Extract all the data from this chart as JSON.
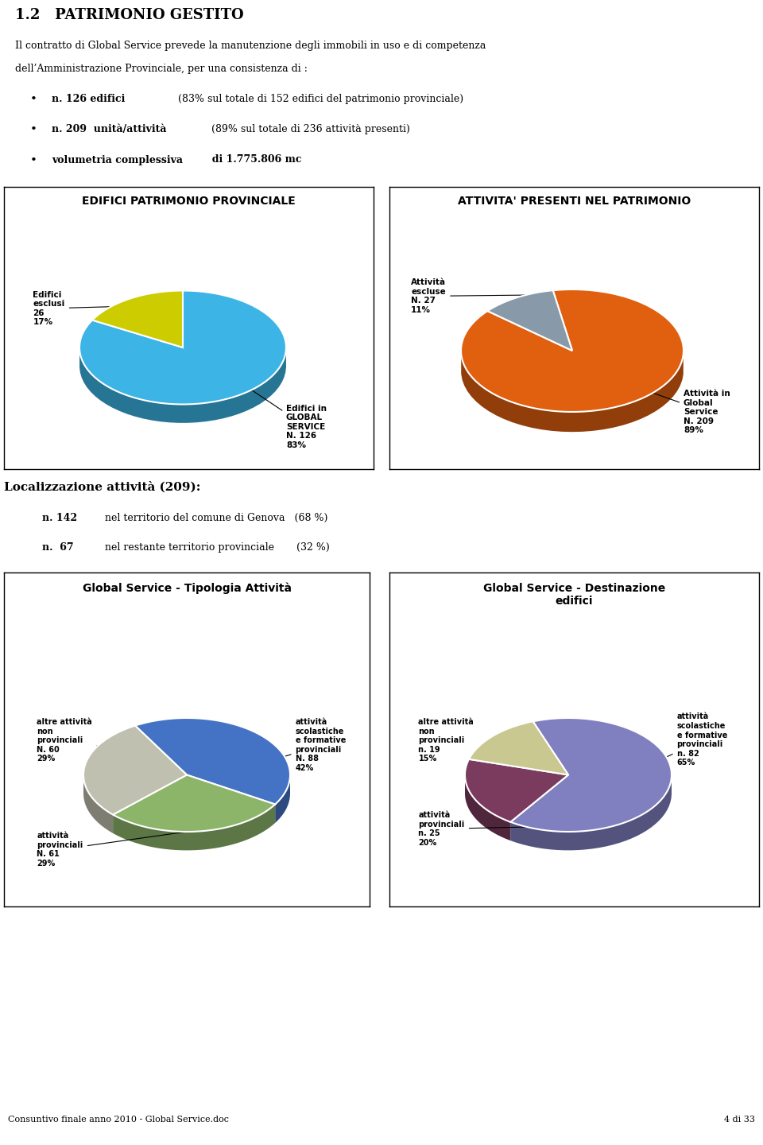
{
  "title": "1.2   PATRIMONIO GESTITO",
  "paragraph1": "Il contratto di Global Service prevede la manutenzione degli immobili in uso e di competenza",
  "paragraph2": "dell’Amministrazione Provinciale, per una consistenza di :",
  "bullet1_bold": "n. 126 edifici",
  "bullet1_rest": " (83% sul totale di 152 edifici del patrimonio provinciale)",
  "bullet2_bold": "n. 209  unità/attività",
  "bullet2_rest": "  (89% sul totale di 236 attività presenti)",
  "bullet3_bold": "volumetria complessiva",
  "bullet3_rest": "  di 1.775.806 mc",
  "chart1_title": "EDIFICI PATRIMONIO PROVINCIALE",
  "chart1_values": [
    83,
    17
  ],
  "chart1_colors": [
    "#3CB4E5",
    "#CCCC00"
  ],
  "chart1_labels": [
    "Edifici in\nGLOBAL\nSERVICE\nN. 126\n83%",
    "Edifici\nesclusi\n26\n17%"
  ],
  "chart1_label_positions": [
    "right",
    "left"
  ],
  "chart2_title": "ATTIVITA' PRESENTI NEL PATRIMONIO",
  "chart2_values": [
    89,
    11
  ],
  "chart2_colors": [
    "#E06010",
    "#8899AA"
  ],
  "chart2_labels": [
    "Attività in\nGlobal\nService\nN. 209\n89%",
    "Attività\nescluse\nN. 27\n11%"
  ],
  "localiz_title": "Localizzazione attività (209):",
  "localiz_line1_bold": "n. 142",
  "localiz_line1_rest": " nel territorio del comune di Genova   (68 %)",
  "localiz_line2_bold": "n.  67",
  "localiz_line2_rest": " nel restante territorio provinciale       (32 %)",
  "chart3_title": "Global Service - Tipologia Attività",
  "chart3_values": [
    42,
    29,
    29
  ],
  "chart3_colors": [
    "#4472C4",
    "#8DB56A",
    "#C0C0B0"
  ],
  "chart3_label1": "attività\nscolastiche\ne formative\nprovinciali\nN. 88\n42%",
  "chart3_label2": "attività\nprovinciali\nN. 61\n29%",
  "chart3_label3": "altre attività\nnon\nprovinciali\nN. 60\n29%",
  "chart4_title": "Global Service - Destinazione\nedifici",
  "chart4_values": [
    65,
    20,
    15
  ],
  "chart4_colors": [
    "#8080C0",
    "#7B3B5E",
    "#C8C890"
  ],
  "chart4_label1": "attività\nscolastiche\ne formative\nprovinciali\nn. 82\n65%",
  "chart4_label2": "attività\nprovinciali\nn. 25\n20%",
  "chart4_label3": "altre attività\nnon\nprovinciali\nn. 19\n15%",
  "footer_left": "Consuntivo finale anno 2010 - Global Service.doc",
  "footer_right": "4 di 33",
  "bg_color": "#FFFFFF"
}
